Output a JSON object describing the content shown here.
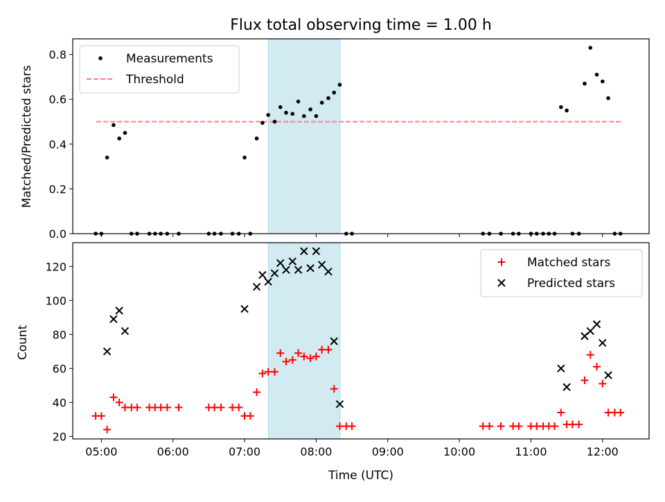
{
  "chart_data": {
    "type": "scatter",
    "title": "Flux total observing time = 1.00 h",
    "xlabel": "Time (UTC)",
    "x_unit": "hours UTC",
    "xlim": [
      4.6,
      12.65
    ],
    "xticks": [
      {
        "value": 5,
        "label": "05:00"
      },
      {
        "value": 6,
        "label": "06:00"
      },
      {
        "value": 7,
        "label": "07:00"
      },
      {
        "value": 8,
        "label": "08:00"
      },
      {
        "value": 9,
        "label": "09:00"
      },
      {
        "value": 10,
        "label": "10:00"
      },
      {
        "value": 11,
        "label": "11:00"
      },
      {
        "value": 12,
        "label": "12:00"
      }
    ],
    "highlight_span": {
      "start": 7.333,
      "end": 8.333,
      "color": "#add8e6"
    },
    "panels": [
      {
        "id": "top",
        "ylabel": "Matched/Predicted stars",
        "ylim": [
          0,
          0.87
        ],
        "yticks": [
          {
            "value": 0.0,
            "label": "0.0"
          },
          {
            "value": 0.2,
            "label": "0.2"
          },
          {
            "value": 0.4,
            "label": "0.4"
          },
          {
            "value": 0.6,
            "label": "0.6"
          },
          {
            "value": 0.8,
            "label": "0.8"
          }
        ],
        "legend": {
          "position": "top-left",
          "entries": [
            {
              "label": "Measurements",
              "marker": "dot",
              "color": "#000000"
            },
            {
              "label": "Threshold",
              "marker": "dashed-line",
              "color": "#ff7f7f"
            }
          ]
        },
        "threshold": {
          "value": 0.5,
          "x_start": 4.93,
          "x_end": 12.28,
          "color": "#ff7f7f"
        },
        "series": [
          {
            "name": "Measurements",
            "marker": "dot",
            "color": "#000000",
            "points": [
              [
                4.92,
                0
              ],
              [
                5.0,
                0
              ],
              [
                5.08,
                0.34
              ],
              [
                5.17,
                0.485
              ],
              [
                5.25,
                0.425
              ],
              [
                5.33,
                0.45
              ],
              [
                5.42,
                0
              ],
              [
                5.5,
                0
              ],
              [
                5.67,
                0
              ],
              [
                5.75,
                0
              ],
              [
                5.83,
                0
              ],
              [
                5.92,
                0
              ],
              [
                6.08,
                0
              ],
              [
                6.5,
                0
              ],
              [
                6.58,
                0
              ],
              [
                6.67,
                0
              ],
              [
                6.83,
                0
              ],
              [
                6.92,
                0
              ],
              [
                7.0,
                0.34
              ],
              [
                7.08,
                0
              ],
              [
                7.17,
                0.425
              ],
              [
                7.25,
                0.495
              ],
              [
                7.33,
                0.53
              ],
              [
                7.42,
                0.5
              ],
              [
                7.5,
                0.565
              ],
              [
                7.58,
                0.54
              ],
              [
                7.67,
                0.535
              ],
              [
                7.75,
                0.59
              ],
              [
                7.83,
                0.525
              ],
              [
                7.92,
                0.555
              ],
              [
                8.0,
                0.525
              ],
              [
                8.08,
                0.585
              ],
              [
                8.17,
                0.605
              ],
              [
                8.25,
                0.63
              ],
              [
                8.33,
                0.665
              ],
              [
                8.42,
                0
              ],
              [
                8.5,
                0
              ],
              [
                10.33,
                0
              ],
              [
                10.42,
                0
              ],
              [
                10.58,
                0
              ],
              [
                10.75,
                0
              ],
              [
                10.83,
                0
              ],
              [
                11.0,
                0
              ],
              [
                11.08,
                0
              ],
              [
                11.17,
                0
              ],
              [
                11.25,
                0
              ],
              [
                11.33,
                0
              ],
              [
                11.42,
                0.565
              ],
              [
                11.5,
                0.55
              ],
              [
                11.58,
                0
              ],
              [
                11.67,
                0
              ],
              [
                11.75,
                0.67
              ],
              [
                11.83,
                0.83
              ],
              [
                11.92,
                0.71
              ],
              [
                12.0,
                0.68
              ],
              [
                12.08,
                0.605
              ],
              [
                12.17,
                0
              ],
              [
                12.25,
                0
              ]
            ]
          }
        ]
      },
      {
        "id": "bottom",
        "ylabel": "Count",
        "ylim": [
          18.5,
          134
        ],
        "yticks": [
          {
            "value": 20,
            "label": "20"
          },
          {
            "value": 40,
            "label": "40"
          },
          {
            "value": 60,
            "label": "60"
          },
          {
            "value": 80,
            "label": "80"
          },
          {
            "value": 100,
            "label": "100"
          },
          {
            "value": 120,
            "label": "120"
          }
        ],
        "legend": {
          "position": "top-right",
          "entries": [
            {
              "label": "Matched stars",
              "marker": "plus",
              "color": "#ff0000"
            },
            {
              "label": "Predicted stars",
              "marker": "x",
              "color": "#000000"
            }
          ]
        },
        "series": [
          {
            "name": "Matched stars",
            "marker": "plus",
            "color": "#ff0000",
            "points": [
              [
                4.92,
                32
              ],
              [
                5.0,
                32
              ],
              [
                5.08,
                24
              ],
              [
                5.17,
                43
              ],
              [
                5.25,
                40
              ],
              [
                5.33,
                37
              ],
              [
                5.42,
                37
              ],
              [
                5.5,
                37
              ],
              [
                5.67,
                37
              ],
              [
                5.75,
                37
              ],
              [
                5.83,
                37
              ],
              [
                5.92,
                37
              ],
              [
                6.08,
                37
              ],
              [
                6.5,
                37
              ],
              [
                6.58,
                37
              ],
              [
                6.67,
                37
              ],
              [
                6.83,
                37
              ],
              [
                6.92,
                37
              ],
              [
                7.0,
                32
              ],
              [
                7.08,
                32
              ],
              [
                7.17,
                46
              ],
              [
                7.25,
                57
              ],
              [
                7.33,
                58
              ],
              [
                7.42,
                58
              ],
              [
                7.5,
                69
              ],
              [
                7.58,
                64
              ],
              [
                7.67,
                65
              ],
              [
                7.75,
                69
              ],
              [
                7.83,
                67
              ],
              [
                7.92,
                66
              ],
              [
                8.0,
                67
              ],
              [
                8.08,
                71
              ],
              [
                8.17,
                71
              ],
              [
                8.25,
                48
              ],
              [
                8.33,
                26
              ],
              [
                8.42,
                26
              ],
              [
                8.5,
                26
              ],
              [
                10.33,
                26
              ],
              [
                10.42,
                26
              ],
              [
                10.58,
                26
              ],
              [
                10.75,
                26
              ],
              [
                10.83,
                26
              ],
              [
                11.0,
                26
              ],
              [
                11.08,
                26
              ],
              [
                11.17,
                26
              ],
              [
                11.25,
                26
              ],
              [
                11.33,
                26
              ],
              [
                11.42,
                34
              ],
              [
                11.5,
                27
              ],
              [
                11.58,
                27
              ],
              [
                11.67,
                27
              ],
              [
                11.75,
                53
              ],
              [
                11.83,
                68
              ],
              [
                11.92,
                61
              ],
              [
                12.0,
                51
              ],
              [
                12.08,
                34
              ],
              [
                12.17,
                34
              ],
              [
                12.25,
                34
              ]
            ]
          },
          {
            "name": "Predicted stars",
            "marker": "x",
            "color": "#000000",
            "points": [
              [
                5.08,
                70
              ],
              [
                5.17,
                89
              ],
              [
                5.25,
                94
              ],
              [
                5.33,
                82
              ],
              [
                7.0,
                95
              ],
              [
                7.17,
                108
              ],
              [
                7.25,
                115
              ],
              [
                7.33,
                111
              ],
              [
                7.42,
                116
              ],
              [
                7.5,
                122
              ],
              [
                7.58,
                118
              ],
              [
                7.67,
                123
              ],
              [
                7.75,
                118
              ],
              [
                7.83,
                129
              ],
              [
                7.92,
                119
              ],
              [
                8.0,
                129
              ],
              [
                8.08,
                121
              ],
              [
                8.17,
                117
              ],
              [
                8.25,
                76
              ],
              [
                8.33,
                39
              ],
              [
                11.42,
                60
              ],
              [
                11.5,
                49
              ],
              [
                11.75,
                79
              ],
              [
                11.83,
                82
              ],
              [
                11.92,
                86
              ],
              [
                12.0,
                75
              ],
              [
                12.08,
                56
              ]
            ]
          }
        ]
      }
    ]
  }
}
